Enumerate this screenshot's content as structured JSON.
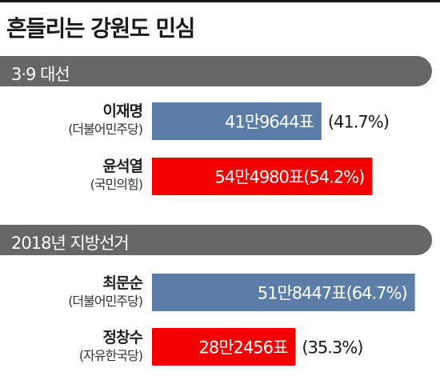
{
  "title": "흔들리는 강원도 민심",
  "colors": {
    "blue": "#5b7ea9",
    "red": "#f20000",
    "section": "#666666"
  },
  "chart_data": [
    {
      "type": "bar",
      "title": "3·9 대선",
      "categories": [
        "이재명",
        "윤석열"
      ],
      "parties": [
        "(더불어민주당)",
        "(국민의힘)"
      ],
      "values": [
        41.7,
        54.2
      ],
      "data_labels": [
        "41만9644표",
        "54만4980표(54.2%)"
      ],
      "outside_labels": [
        "(41.7%)",
        ""
      ],
      "colors": [
        "#5b7ea9",
        "#f20000"
      ]
    },
    {
      "type": "bar",
      "title": "2018년 지방선거",
      "categories": [
        "최문순",
        "정창수"
      ],
      "parties": [
        "(더불어민주당)",
        "(자유한국당)"
      ],
      "values": [
        64.7,
        35.3
      ],
      "data_labels": [
        "51만8447표(64.7%)",
        "28만2456표"
      ],
      "outside_labels": [
        "",
        "(35.3%)"
      ],
      "colors": [
        "#5b7ea9",
        "#f20000"
      ]
    }
  ]
}
